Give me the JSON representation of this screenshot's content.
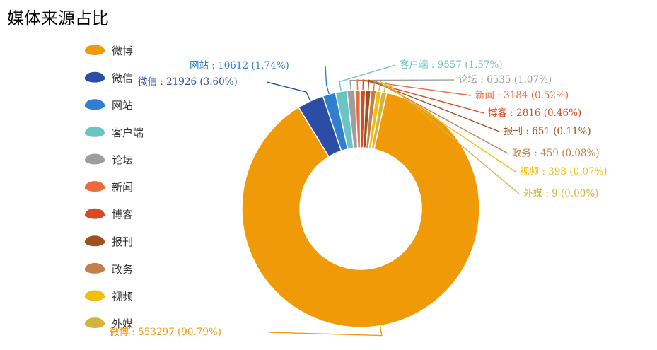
{
  "chart_data": {
    "type": "pie",
    "variant": "donut",
    "title": "媒体来源占比",
    "legend_placement": "left",
    "slices": [
      {
        "name": "微博",
        "value": 553297,
        "percent": "90.79%",
        "color": "#f09a08",
        "label": "微博 : 553297 (90.79%)"
      },
      {
        "name": "微信",
        "value": 21926,
        "percent": "3.60%",
        "color": "#2b4da6",
        "label": "微信 : 21926 (3.60%)"
      },
      {
        "name": "网站",
        "value": 10612,
        "percent": "1.74%",
        "color": "#2f7fd0",
        "label": "网站 : 10612 (1.74%)"
      },
      {
        "name": "客户端",
        "value": 9557,
        "percent": "1.57%",
        "color": "#6cc3c4",
        "label": "客户端 : 9557 (1.57%)"
      },
      {
        "name": "论坛",
        "value": 6535,
        "percent": "1.07%",
        "color": "#9e9e9e",
        "label": "论坛 : 6535 (1.07%)"
      },
      {
        "name": "新闻",
        "value": 3184,
        "percent": "0.52%",
        "color": "#ee6a3a",
        "label": "新闻 : 3184 (0.52%)"
      },
      {
        "name": "博客",
        "value": 2816,
        "percent": "0.46%",
        "color": "#d84a22",
        "label": "博客 : 2816 (0.46%)"
      },
      {
        "name": "报刊",
        "value": 651,
        "percent": "0.11%",
        "color": "#a0501f",
        "label": "报刊 : 651 (0.11%)"
      },
      {
        "name": "政务",
        "value": 459,
        "percent": "0.08%",
        "color": "#c0804c",
        "label": "政务 : 459 (0.08%)"
      },
      {
        "name": "视频",
        "value": 398,
        "percent": "0.07%",
        "color": "#f3be0a",
        "label": "视频 : 398 (0.07%)"
      },
      {
        "name": "外媒",
        "value": 9,
        "percent": "0.00%",
        "color": "#d4b43e",
        "label": "外媒 : 9 (0.00%)"
      }
    ]
  }
}
